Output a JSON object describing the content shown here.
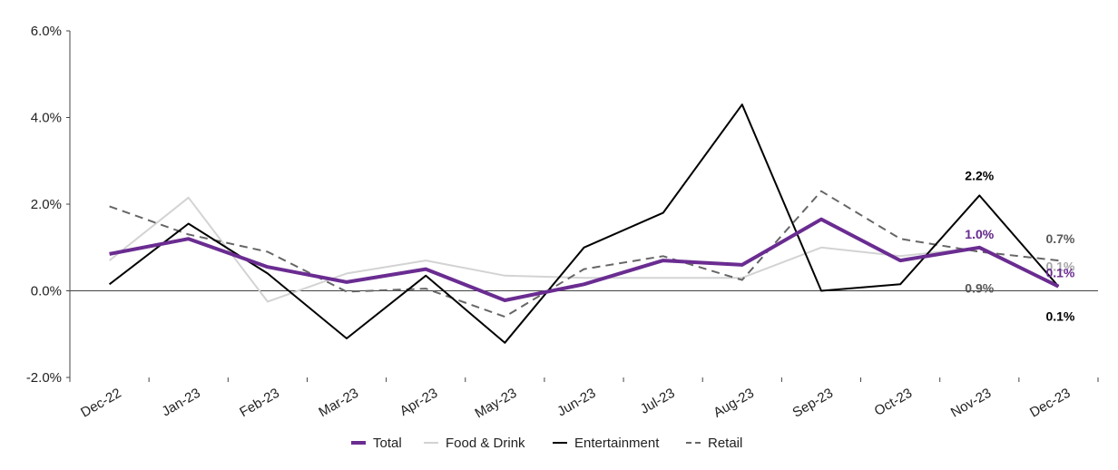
{
  "chart_data": {
    "type": "line",
    "title": "",
    "xlabel": "",
    "ylabel": "",
    "categories": [
      "Dec-22",
      "Jan-23",
      "Feb-23",
      "Mar-23",
      "Apr-23",
      "May-23",
      "Jun-23",
      "Jul-23",
      "Aug-23",
      "Sep-23",
      "Oct-23",
      "Nov-23",
      "Dec-23"
    ],
    "ylim": [
      -2.0,
      6.0
    ],
    "y_ticks": [
      "6.0%",
      "4.0%",
      "2.0%",
      "0.0%",
      "-2.0%"
    ],
    "y_tick_values": [
      6.0,
      4.0,
      2.0,
      0.0,
      -2.0
    ],
    "grid": false,
    "legend_position": "bottom",
    "series": [
      {
        "name": "Food & Drink",
        "color": "#d3d3d3",
        "style": "solid",
        "values": [
          0.7,
          2.15,
          -0.25,
          0.4,
          0.7,
          0.35,
          0.3,
          0.3,
          0.3,
          1.0,
          0.8,
          1.0,
          0.1
        ]
      },
      {
        "name": "Retail",
        "color": "#666666",
        "style": "dashed",
        "values": [
          1.95,
          1.3,
          0.9,
          -0.02,
          0.05,
          -0.6,
          0.5,
          0.8,
          0.25,
          2.3,
          1.2,
          0.9,
          0.7
        ]
      },
      {
        "name": "Entertainment",
        "color": "#000000",
        "style": "solid",
        "values": [
          0.15,
          1.55,
          0.4,
          -1.1,
          0.35,
          -1.2,
          1.0,
          1.8,
          4.3,
          0.0,
          0.15,
          2.2,
          0.1
        ]
      },
      {
        "name": "Total",
        "color": "#6a2c91",
        "style": "solid",
        "values": [
          0.85,
          1.2,
          0.55,
          0.2,
          0.5,
          -0.22,
          0.15,
          0.7,
          0.6,
          1.65,
          0.7,
          1.0,
          0.1
        ]
      }
    ],
    "legend_order": [
      "Total",
      "Food & Drink",
      "Entertainment",
      "Retail"
    ],
    "annotations": [
      {
        "series": "Entertainment",
        "category": "Nov-23",
        "text": "2.2%",
        "color": "#000000"
      },
      {
        "series": "Food & Drink",
        "category": "Nov-23",
        "text": "1.0%",
        "color": "#a6a6a6"
      },
      {
        "series": "Total",
        "category": "Nov-23",
        "text": "1.0%",
        "color": "#6a2c91"
      },
      {
        "series": "Retail",
        "category": "Nov-23",
        "text": "0.9%",
        "color": "#595959"
      },
      {
        "series": "Retail",
        "category": "Dec-23",
        "text": "0.7%",
        "color": "#595959"
      },
      {
        "series": "Food & Drink",
        "category": "Dec-23",
        "text": "0.1%",
        "color": "#a6a6a6"
      },
      {
        "series": "Total",
        "category": "Dec-23",
        "text": "0.1%",
        "color": "#6a2c91"
      },
      {
        "series": "Entertainment",
        "category": "Dec-23",
        "text": "0.1%",
        "color": "#000000"
      }
    ]
  }
}
